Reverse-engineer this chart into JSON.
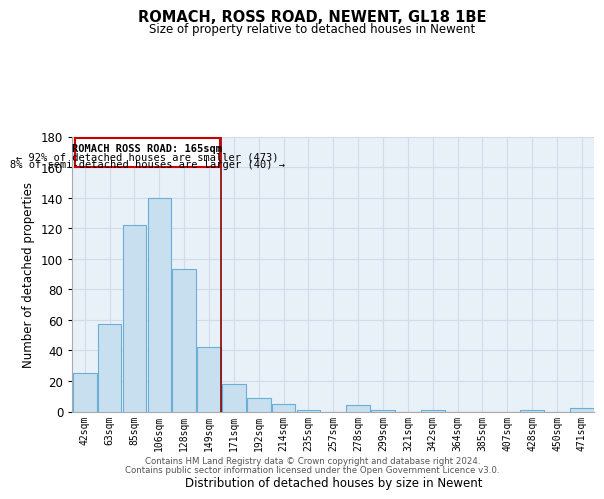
{
  "title": "ROMACH, ROSS ROAD, NEWENT, GL18 1BE",
  "subtitle": "Size of property relative to detached houses in Newent",
  "xlabel": "Distribution of detached houses by size in Newent",
  "ylabel": "Number of detached properties",
  "bar_labels": [
    "42sqm",
    "63sqm",
    "85sqm",
    "106sqm",
    "128sqm",
    "149sqm",
    "171sqm",
    "192sqm",
    "214sqm",
    "235sqm",
    "257sqm",
    "278sqm",
    "299sqm",
    "321sqm",
    "342sqm",
    "364sqm",
    "385sqm",
    "407sqm",
    "428sqm",
    "450sqm",
    "471sqm"
  ],
  "bar_values": [
    25,
    57,
    122,
    140,
    93,
    42,
    18,
    9,
    5,
    1,
    0,
    4,
    1,
    0,
    1,
    0,
    0,
    0,
    1,
    0,
    2
  ],
  "bar_color": "#c8dff0",
  "bar_edge_color": "#6aafd6",
  "subject_line_idx": 6,
  "subject_line_label": "ROMACH ROSS ROAD: 165sqm",
  "annotation_line1": "← 92% of detached houses are smaller (473)",
  "annotation_line2": "8% of semi-detached houses are larger (40) →",
  "ylim": [
    0,
    180
  ],
  "yticks": [
    0,
    20,
    40,
    60,
    80,
    100,
    120,
    140,
    160,
    180
  ],
  "grid_color": "#d0dde8",
  "background_color": "#e8f0f8",
  "footer_line1": "Contains HM Land Registry data © Crown copyright and database right 2024.",
  "footer_line2": "Contains public sector information licensed under the Open Government Licence v3.0."
}
